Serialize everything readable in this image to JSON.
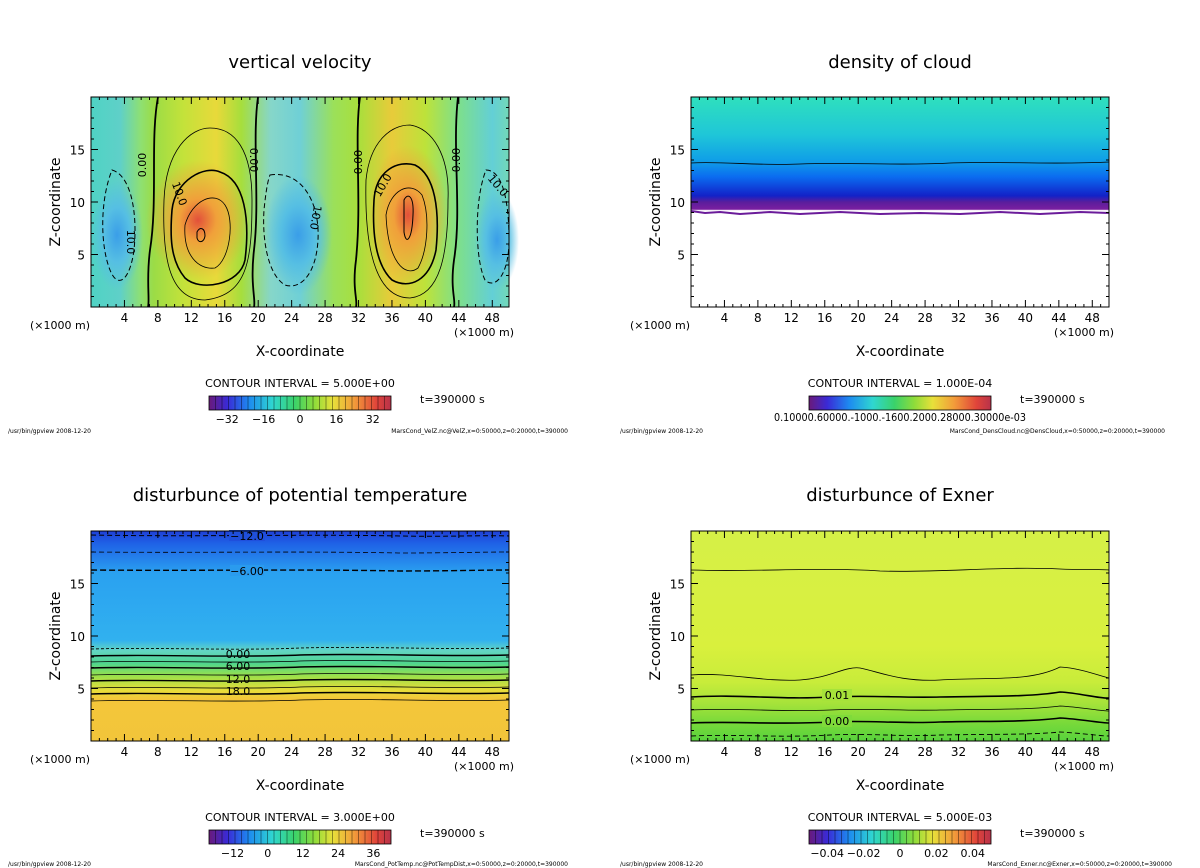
{
  "panels": [
    {
      "id": "p1",
      "title": "vertical velocity",
      "xlabel": "X-coordinate",
      "ylabel": "Z-coordinate",
      "x_unit": "(×1000 m)",
      "x_unit_left": "(×1000 m)",
      "xticks": [
        "4",
        "8",
        "12",
        "16",
        "20",
        "24",
        "28",
        "32",
        "36",
        "40",
        "44",
        "48"
      ],
      "yticks": [
        "5",
        "10",
        "15"
      ],
      "contour_interval": "CONTOUR INTERVAL = 5.000E+00",
      "time": "t=390000 s",
      "colorbar_ticks": [
        "−32",
        "−16",
        "0",
        "16",
        "32"
      ],
      "colorbar_values": [
        -32,
        -16,
        0,
        16,
        32
      ],
      "colorbar_range": [
        -40,
        40
      ],
      "footer_left": "/usr/bin/gpview  2008-12-20",
      "footer_right": "MarsCond_VelZ.nc@VelZ,x=0:50000,z=0:20000,t=390000",
      "contour_labels": [
        "0.00",
        "0.00",
        "0.00",
        "0.00",
        "10.0",
        "10.0",
        "10.0",
        "10.0",
        "10.0"
      ]
    },
    {
      "id": "p2",
      "title": "density of cloud",
      "xlabel": "X-coordinate",
      "ylabel": "Z-coordinate",
      "x_unit": "(×1000 m)",
      "x_unit_left": "(×1000 m)",
      "xticks": [
        "4",
        "8",
        "12",
        "16",
        "20",
        "24",
        "28",
        "32",
        "36",
        "40",
        "44",
        "48"
      ],
      "yticks": [
        "5",
        "10",
        "15"
      ],
      "contour_interval": "CONTOUR INTERVAL = 1.000E-04",
      "time": "t=390000 s",
      "colorbar_text": "0.10000.60000.-1000.-1600.2000.28000.30000e-03",
      "footer_left": "/usr/bin/gpview  2008-12-20",
      "footer_right": "MarsCond_DensCloud.nc@DensCloud,x=0:50000,z=0:20000,t=390000"
    },
    {
      "id": "p3",
      "title": "disturbunce of potential temperature",
      "xlabel": "X-coordinate",
      "ylabel": "Z-coordinate",
      "x_unit": "(×1000 m)",
      "x_unit_left": "(×1000 m)",
      "xticks": [
        "4",
        "8",
        "12",
        "16",
        "20",
        "24",
        "28",
        "32",
        "36",
        "40",
        "44",
        "48"
      ],
      "yticks": [
        "5",
        "10",
        "15"
      ],
      "contour_interval": "CONTOUR INTERVAL = 3.000E+00",
      "time": "t=390000 s",
      "colorbar_ticks": [
        "−12",
        "0",
        "12",
        "24",
        "36"
      ],
      "colorbar_values": [
        -12,
        0,
        12,
        24,
        36
      ],
      "colorbar_range": [
        -20,
        42
      ],
      "footer_left": "/usr/bin/gpview  2008-12-20",
      "footer_right": "MarsCond_PotTemp.nc@PotTempDist,x=0:50000,z=0:20000,t=390000",
      "contour_labels": [
        "−12.0",
        "−6.00",
        "0.00",
        "6.00",
        "12.0",
        "18.0"
      ]
    },
    {
      "id": "p4",
      "title": "disturbunce of Exner",
      "xlabel": "X-coordinate",
      "ylabel": "Z-coordinate",
      "x_unit": "(×1000 m)",
      "x_unit_left": "(×1000 m)",
      "xticks": [
        "4",
        "8",
        "12",
        "16",
        "20",
        "24",
        "28",
        "32",
        "36",
        "40",
        "44",
        "48"
      ],
      "yticks": [
        "5",
        "10",
        "15"
      ],
      "contour_interval": "CONTOUR INTERVAL = 5.000E-03",
      "time": "t=390000 s",
      "colorbar_ticks": [
        "−0.04",
        "−0.02",
        "0",
        "0.02",
        "0.04"
      ],
      "colorbar_values": [
        -0.04,
        -0.02,
        0,
        0.02,
        0.04
      ],
      "colorbar_range": [
        -0.05,
        0.05
      ],
      "footer_left": "/usr/bin/gpview  2008-12-20",
      "footer_right": "MarsCond_Exner.nc@Exner,x=0:50000,z=0:20000,t=390000",
      "contour_labels": [
        "0.01",
        "0.00"
      ]
    }
  ],
  "chart_data": [
    {
      "type": "heatmap",
      "title": "vertical velocity",
      "xlabel": "X-coordinate (×1000 m)",
      "ylabel": "Z-coordinate",
      "xlim": [
        0,
        50
      ],
      "ylim": [
        0,
        20
      ],
      "x_ticks": [
        4,
        8,
        12,
        16,
        20,
        24,
        28,
        32,
        36,
        40,
        44,
        48
      ],
      "y_ticks": [
        5,
        10,
        15
      ],
      "contour_interval": 5.0,
      "colorbar_ticks": [
        -32,
        -16,
        0,
        16,
        32
      ],
      "updraft_centers_x": [
        13,
        39
      ],
      "downdraft_centers_x": [
        4,
        26,
        48
      ],
      "time_s": 390000
    },
    {
      "type": "heatmap",
      "title": "density of cloud",
      "xlabel": "X-coordinate (×1000 m)",
      "ylabel": "Z-coordinate",
      "xlim": [
        0,
        50
      ],
      "ylim": [
        0,
        20
      ],
      "x_ticks": [
        4,
        8,
        12,
        16,
        20,
        24,
        28,
        32,
        36,
        40,
        44,
        48
      ],
      "y_ticks": [
        5,
        10,
        15
      ],
      "contour_interval": 0.0001,
      "cloud_base_z": 9,
      "contour_z": 13.5,
      "time_s": 390000
    },
    {
      "type": "heatmap",
      "title": "disturbunce of potential temperature",
      "xlabel": "X-coordinate (×1000 m)",
      "ylabel": "Z-coordinate",
      "xlim": [
        0,
        50
      ],
      "ylim": [
        0,
        20
      ],
      "x_ticks": [
        4,
        8,
        12,
        16,
        20,
        24,
        28,
        32,
        36,
        40,
        44,
        48
      ],
      "y_ticks": [
        5,
        10,
        15
      ],
      "contour_interval": 3.0,
      "colorbar_ticks": [
        -12,
        0,
        12,
        24,
        36
      ],
      "contours": [
        {
          "level": -12.0,
          "z": 19.5
        },
        {
          "level": -9.0,
          "z": 18.0
        },
        {
          "level": -6.0,
          "z": 16.3
        },
        {
          "level": 0.0,
          "z": 8.6
        },
        {
          "level": 6.0,
          "z": 7.2
        },
        {
          "level": 12.0,
          "z": 6.0
        },
        {
          "level": 18.0,
          "z": 4.7
        }
      ],
      "time_s": 390000
    },
    {
      "type": "heatmap",
      "title": "disturbunce of Exner",
      "xlabel": "X-coordinate (×1000 m)",
      "ylabel": "Z-coordinate",
      "xlim": [
        0,
        50
      ],
      "ylim": [
        0,
        20
      ],
      "x_ticks": [
        4,
        8,
        12,
        16,
        20,
        24,
        28,
        32,
        36,
        40,
        44,
        48
      ],
      "y_ticks": [
        5,
        10,
        15
      ],
      "contour_interval": 0.005,
      "colorbar_ticks": [
        -0.04,
        -0.02,
        0,
        0.02,
        0.04
      ],
      "contours": [
        {
          "level": 0.02,
          "z": 16.3
        },
        {
          "level": 0.015,
          "z": 6.3
        },
        {
          "level": 0.01,
          "z": 4.3
        },
        {
          "level": 0.005,
          "z": 3.1
        },
        {
          "level": 0.0,
          "z": 1.8
        },
        {
          "level": -0.005,
          "z": 0.6
        }
      ],
      "time_s": 390000
    }
  ]
}
